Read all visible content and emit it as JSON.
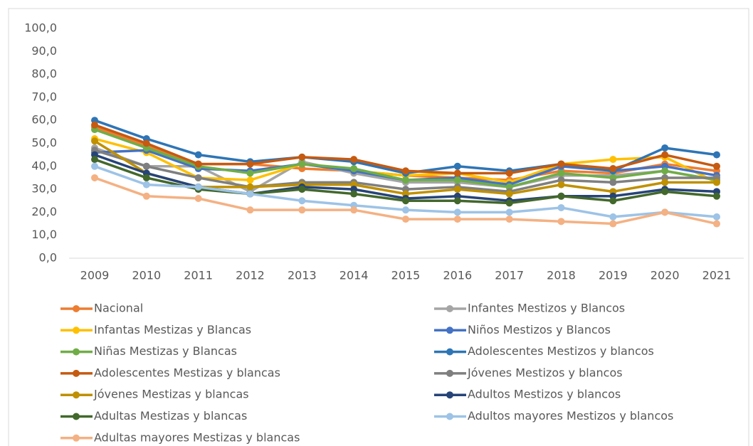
{
  "chart_data": {
    "type": "line",
    "categories": [
      "2009",
      "2010",
      "2011",
      "2012",
      "2013",
      "2014",
      "2015",
      "2016",
      "2017",
      "2018",
      "2019",
      "2020",
      "2021"
    ],
    "ylim": [
      0,
      100
    ],
    "yticks": [
      {
        "value": 0,
        "label": "0,0"
      },
      {
        "value": 10,
        "label": "10,0"
      },
      {
        "value": 20,
        "label": "20,0"
      },
      {
        "value": 30,
        "label": "30,0"
      },
      {
        "value": 40,
        "label": "40,0"
      },
      {
        "value": 50,
        "label": "50,0"
      },
      {
        "value": 60,
        "label": "60,0"
      },
      {
        "value": 70,
        "label": "70,0"
      },
      {
        "value": 80,
        "label": "80,0"
      },
      {
        "value": 90,
        "label": "90,0"
      },
      {
        "value": 100,
        "label": "100,0"
      }
    ],
    "grid": false,
    "legend": "bottom",
    "series": [
      {
        "name": "Nacional",
        "color": "#ed7d31",
        "values": [
          57,
          49,
          41,
          41,
          39,
          38,
          36,
          35,
          34,
          38,
          37,
          41,
          38
        ]
      },
      {
        "name": "Infantes Mestizos y Blancos",
        "color": "#a5a5a5",
        "values": [
          48,
          40,
          40,
          29,
          42,
          37,
          33,
          33,
          31,
          36,
          36,
          38,
          34
        ]
      },
      {
        "name": "Infantas Mestizas y Blancas",
        "color": "#ffc000",
        "values": [
          52,
          46,
          35,
          34,
          41,
          38,
          36,
          37,
          33,
          41,
          43,
          44,
          33
        ]
      },
      {
        "name": "Niños Mestizos y Blancos",
        "color": "#4472c4",
        "values": [
          46,
          47,
          39,
          38,
          41,
          38,
          34,
          35,
          32,
          40,
          38,
          40,
          36
        ]
      },
      {
        "name": "Niñas Mestizas y Blancas",
        "color": "#70ad47",
        "values": [
          56,
          48,
          40,
          37,
          41,
          39,
          34,
          34,
          31,
          37,
          35,
          38,
          34
        ]
      },
      {
        "name": "Adolescentes Mestizos y blancos",
        "color": "#2e75b6",
        "values": [
          60,
          52,
          45,
          42,
          44,
          42,
          37,
          40,
          38,
          41,
          38,
          48,
          45
        ]
      },
      {
        "name": "Adolescentes Mestizas y blancas",
        "color": "#c55a11",
        "values": [
          58,
          50,
          41,
          41,
          44,
          43,
          38,
          37,
          37,
          41,
          39,
          45,
          40
        ]
      },
      {
        "name": "Jóvenes Mestizos y blancos",
        "color": "#7f7f7f",
        "values": [
          47,
          40,
          35,
          31,
          33,
          33,
          30,
          31,
          29,
          34,
          33,
          35,
          35
        ]
      },
      {
        "name": "Jóvenes Mestizas y blancas",
        "color": "#bf9000",
        "values": [
          51,
          37,
          31,
          31,
          32,
          32,
          28,
          30,
          28,
          32,
          29,
          33,
          33
        ]
      },
      {
        "name": "Adultos Mestizos y blancos",
        "color": "#264478",
        "values": [
          45,
          37,
          31,
          28,
          31,
          30,
          26,
          27,
          25,
          27,
          27,
          30,
          29
        ]
      },
      {
        "name": "Adultas Mestizas y blancas",
        "color": "#43682b",
        "values": [
          43,
          35,
          30,
          28,
          30,
          28,
          25,
          25,
          24,
          27,
          25,
          29,
          27
        ]
      },
      {
        "name": "Adultos mayores Mestizos y blancos",
        "color": "#9dc3e6",
        "values": [
          40,
          32,
          31,
          28,
          25,
          23,
          21,
          20,
          20,
          22,
          18,
          20,
          18
        ]
      },
      {
        "name": "Adultas mayores Mestizas y blancas",
        "color": "#f4b183",
        "values": [
          35,
          27,
          26,
          21,
          21,
          21,
          17,
          17,
          17,
          16,
          15,
          20,
          15
        ]
      }
    ]
  }
}
